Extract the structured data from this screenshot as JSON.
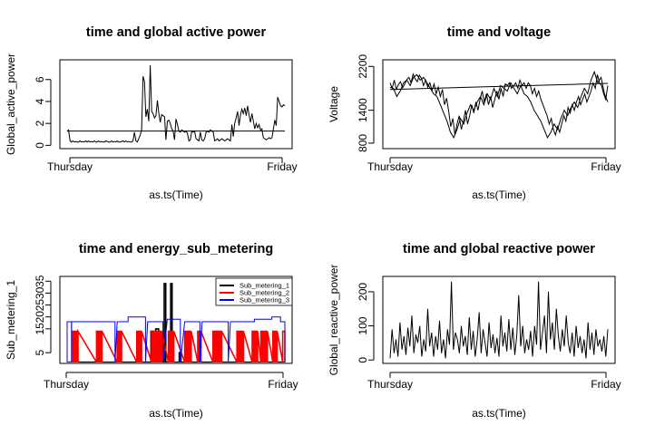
{
  "chart_data": [
    {
      "type": "line",
      "title": "time and global active power",
      "xlabel": "as.ts(Time)",
      "ylabel": "Global_active_power",
      "x_ticks": [
        "Thursday",
        "Friday"
      ],
      "y_ticks": [
        "0",
        "2",
        "4",
        "6"
      ],
      "ylim": [
        -0.3,
        7.8
      ],
      "colors": [
        "#000000"
      ],
      "series": [
        {
          "values": [
            1.3,
            1.4,
            0.4,
            0.3,
            0.4,
            0.3,
            0.35,
            0.3,
            0.3,
            0.4,
            0.3,
            0.35,
            0.3,
            0.4,
            0.3,
            0.4,
            0.3,
            0.35,
            0.3,
            0.4,
            0.3,
            0.3,
            0.4,
            0.3,
            0.35,
            0.3,
            0.3,
            0.4,
            0.35,
            0.3,
            0.3,
            0.4,
            0.3,
            0.35,
            0.3,
            0.4,
            0.3,
            0.3,
            0.35,
            0.4,
            0.3,
            0.4,
            0.3,
            0.35,
            0.3,
            0.3,
            0.4,
            1.2,
            0.4,
            0.3,
            0.6,
            0.9,
            1.4,
            6.3,
            5.8,
            2.6,
            3.3,
            2.2,
            7.3,
            3.1,
            2.9,
            2.5,
            2.7,
            4.1,
            2.9,
            2.1,
            2.8,
            2.7,
            2.6,
            0.5,
            2.2,
            2.3,
            2.0,
            1.5,
            1.3,
            0.5,
            2.4,
            1.9,
            1.3,
            1.2,
            1.4,
            1.3,
            1.2,
            1.3,
            1.1,
            0.4,
            0.5,
            1.3,
            1.2,
            1.3,
            0.6,
            0.5,
            0.4,
            1.2,
            0.5,
            0.4,
            0.6,
            1.2,
            1.3,
            1.2,
            1.4,
            1.3,
            1.2,
            0.4,
            0.5,
            0.6,
            0.4,
            0.5,
            0.6,
            0.5,
            0.4,
            0.5,
            0.6,
            0.5,
            0.4,
            1.9,
            0.8,
            2.0,
            2.5,
            3.1,
            1.8,
            2.8,
            3.3,
            2.9,
            3.4,
            2.7,
            3.6,
            2.8,
            2.1,
            2.9,
            2.2,
            1.5,
            2.0,
            1.6,
            1.9,
            1.4,
            1.5,
            0.7,
            0.6,
            0.5,
            0.6,
            0.7,
            0.6,
            0.7,
            1.5,
            2.3,
            1.8,
            4.4,
            4.0,
            3.6,
            3.5,
            3.7,
            3.6
          ]
        },
        {
          "values": [
            1.3,
            1.3
          ]
        }
      ]
    },
    {
      "type": "line",
      "title": "time and voltage",
      "xlabel": "as.ts(Time)",
      "ylabel": "Voltage",
      "x_ticks": [
        "Thursday",
        "Friday"
      ],
      "y_ticks": [
        "800",
        "1400",
        "2200"
      ],
      "ylim": [
        700,
        2320
      ],
      "colors": [
        "#000000"
      ],
      "series": [
        {
          "values": [
            1900,
            1800,
            1950,
            1780,
            1870,
            1920,
            1810,
            1880,
            1960,
            2000,
            1900,
            2060,
            1970,
            1920,
            2040,
            1980,
            1850,
            1950,
            1820,
            1900,
            1760,
            1880,
            1700,
            1820,
            1650,
            1780,
            1500,
            1620,
            1380,
            1100,
            1250,
            950,
            1150,
            1300,
            1050,
            1200,
            1400,
            1150,
            1300,
            1500,
            1350,
            1550,
            1400,
            1600,
            1750,
            1550,
            1700,
            1500,
            1650,
            1450,
            1600,
            1750,
            1600,
            1800,
            1650,
            1880,
            1850,
            1900,
            1800,
            1850,
            1900,
            1800,
            1950,
            1850,
            1900,
            1800,
            1900,
            1850,
            1700,
            1800,
            1650,
            1750,
            1600,
            1500,
            1400,
            1300,
            1150,
            1250,
            1050,
            950,
            1100,
            1000,
            1150,
            1300,
            1200,
            1450,
            1350,
            1500,
            1400,
            1550,
            1650,
            1500,
            1600,
            1700,
            1550,
            1650,
            1750,
            1900,
            1800,
            2050,
            1900,
            1850,
            1700,
            1600,
            1850
          ]
        },
        {
          "values": [
            1820,
            1800,
            1650,
            1750,
            1900,
            1950,
            1850,
            2000,
            2050,
            1950,
            2000,
            1900,
            1800,
            1700,
            1650,
            1500,
            1350,
            1200,
            1000,
            900,
            1050,
            1250,
            1150,
            1350,
            1500,
            1400,
            1550,
            1650,
            1500,
            1700,
            1600,
            1800,
            1650,
            1850,
            1800,
            1750,
            1900,
            1800,
            1700,
            1850,
            1700,
            1650,
            1550,
            1400,
            1300,
            1200,
            1050,
            900,
            1000,
            1150,
            1050,
            1250,
            1400,
            1300,
            1450,
            1550,
            1450,
            1650,
            1800,
            1700,
            1950,
            2100,
            1900,
            2000,
            1700,
            1550
          ]
        },
        {
          "values": [
            1780,
            1890
          ]
        }
      ]
    },
    {
      "type": "line",
      "title": "time and energy_sub_metering",
      "xlabel": "as.ts(Time)",
      "ylabel": "Sub_metering_1",
      "x_ticks": [
        "Thursday",
        "Friday"
      ],
      "y_ticks": [
        "5",
        "15",
        "20",
        "25",
        "30",
        "35"
      ],
      "ylim": [
        0.5,
        37
      ],
      "legend_position": "top-right",
      "series": [
        {
          "name": "Sub_metering_1",
          "color": "#000000",
          "pulses": [
            [
              38.5,
              40.5,
              14
            ],
            [
              40.7,
              42,
              15
            ],
            [
              44.6,
              45.3,
              34
            ],
            [
              47.6,
              48.2,
              34
            ],
            [
              51.5,
              52.3,
              5
            ]
          ],
          "base": 1
        },
        {
          "name": "Sub_metering_2",
          "color": "#ff0000",
          "pulses": [
            [
              2.5,
              5,
              14
            ],
            [
              13.5,
              16,
              14
            ],
            [
              23,
              25,
              14
            ],
            [
              32,
              34.2,
              14
            ],
            [
              38.8,
              43.5,
              14
            ],
            [
              46.5,
              49,
              14
            ],
            [
              54,
              57,
              14
            ],
            [
              60,
              61.5,
              14
            ],
            [
              67,
              71,
              14
            ],
            [
              78,
              81,
              14
            ],
            [
              85,
              87.5,
              14
            ],
            [
              89,
              92,
              14
            ],
            [
              94.5,
              96.5,
              14
            ],
            [
              99,
              100,
              14
            ]
          ],
          "base": 1
        },
        {
          "name": "Sub_metering_3",
          "color": "#0000ff",
          "pulses": [
            [
              0,
              100,
              18
            ]
          ],
          "base": 1
        }
      ]
    },
    {
      "type": "line",
      "title": "time and global reactive power",
      "xlabel": "as.ts(Time)",
      "ylabel": "Global_reactive_power",
      "x_ticks": [
        "Thursday",
        "Friday"
      ],
      "y_ticks": [
        "0",
        "100",
        "200"
      ],
      "ylim": [
        -10,
        245
      ],
      "colors": [
        "#000000"
      ],
      "series": [
        {
          "values": [
            5,
            90,
            20,
            60,
            10,
            110,
            30,
            70,
            15,
            95,
            40,
            130,
            20,
            75,
            50,
            100,
            10,
            60,
            25,
            150,
            40,
            80,
            10,
            70,
            30,
            115,
            20,
            60,
            5,
            90,
            45,
            230,
            30,
            80,
            60,
            20,
            100,
            40,
            70,
            15,
            125,
            30,
            85,
            10,
            60,
            140,
            20,
            90,
            50,
            10,
            110,
            35,
            75,
            20,
            65,
            10,
            130,
            40,
            80,
            25,
            120,
            30,
            95,
            15,
            70,
            190,
            40,
            100,
            20,
            60,
            30,
            85,
            10,
            100,
            45,
            230,
            30,
            80,
            130,
            20,
            200,
            60,
            110,
            30,
            150,
            70,
            25,
            90,
            40,
            130,
            50,
            20,
            80,
            10,
            100,
            35,
            70,
            20,
            60,
            5,
            110,
            30,
            80,
            15,
            90,
            40,
            60,
            25,
            70,
            10,
            90
          ]
        }
      ]
    }
  ]
}
